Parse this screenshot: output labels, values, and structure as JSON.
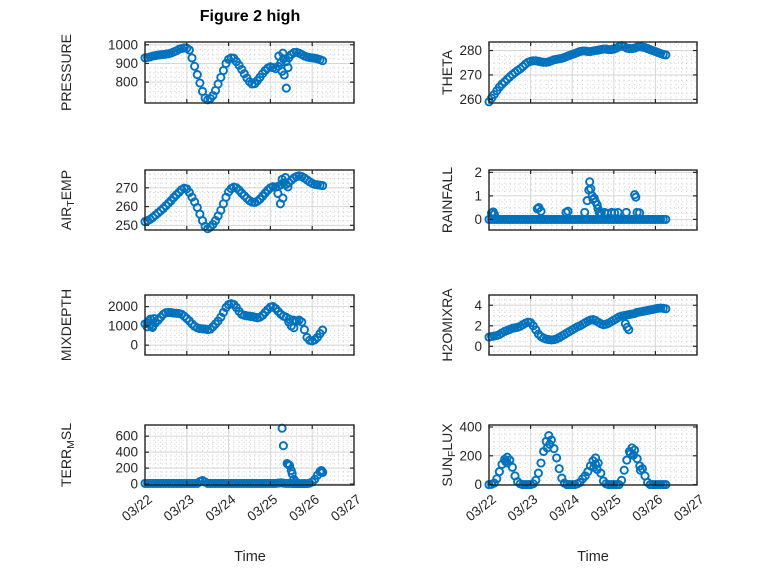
{
  "figure": {
    "title": "Figure 2 high",
    "xlabel": "Time",
    "x_tick_labels": [
      "03/22",
      "03/23",
      "03/24",
      "03/25",
      "03/26",
      "03/27"
    ],
    "xlim": [
      0,
      5
    ],
    "xticks": [
      0,
      1,
      2,
      3,
      4,
      5
    ],
    "colors": {
      "marker": "#0072BD",
      "axis": "#262626",
      "major_grid": "#d6d6d6",
      "minor_grid": "#c9c9c9",
      "text": "#262626",
      "background": "#ffffff"
    }
  },
  "chart_data": [
    {
      "type": "scatter",
      "name": "PRESSURE",
      "ylabel_pre": "PRESSURE",
      "ylabel_sub": "",
      "ylabel_post": "",
      "yticks": [
        800,
        900,
        1000
      ],
      "ylim": [
        688,
        1015
      ],
      "x0": 0,
      "dx": 0.0625,
      "y": [
        930,
        932,
        935,
        940,
        942,
        945,
        947,
        948,
        950,
        952,
        956,
        962,
        968,
        976,
        980,
        984,
        982,
        972,
        930,
        885,
        840,
        795,
        750,
        715,
        705,
        712,
        728,
        755,
        790,
        825,
        862,
        900,
        922,
        930,
        928,
        910,
        890,
        868,
        845,
        822,
        802,
        790,
        792,
        808,
        825,
        845,
        862,
        875,
        882,
        878,
        872,
        885,
        905,
        925,
        910,
        930,
        948,
        958,
        960,
        955,
        948,
        940,
        935,
        932,
        930,
        928,
        925,
        920,
        915
      ],
      "extra": [
        [
          3.28,
          858
        ],
        [
          3.33,
          838
        ],
        [
          3.38,
          768
        ],
        [
          3.2,
          940
        ],
        [
          3.3,
          955
        ],
        [
          3.42,
          878
        ]
      ]
    },
    {
      "type": "scatter",
      "name": "THETA",
      "ylabel_pre": "THETA",
      "ylabel_sub": "",
      "ylabel_post": "",
      "yticks": [
        260,
        270,
        280
      ],
      "ylim": [
        258.5,
        283.5
      ],
      "x0": 0,
      "dx": 0.0625,
      "y": [
        259,
        260.5,
        262,
        263.5,
        265,
        266.2,
        267.2,
        268.2,
        269.2,
        270.2,
        271,
        271.8,
        272.5,
        273.4,
        274.4,
        275.2,
        275.6,
        275.8,
        275.8,
        275.6,
        275.4,
        275.2,
        275.2,
        275.4,
        275.8,
        276.2,
        276.4,
        276.6,
        276.8,
        277.2,
        277.6,
        278,
        278.4,
        278.8,
        279.2,
        279.6,
        279.8,
        279.8,
        279.6,
        279.6,
        279.8,
        280,
        280.2,
        280.4,
        280.6,
        280.6,
        280.4,
        280.4,
        280.6,
        281,
        281.6,
        282,
        281.6,
        281,
        280.8,
        280.8,
        281,
        281.4,
        281.6,
        281.4,
        281.2,
        280.8,
        280.4,
        280,
        279.6,
        279.2,
        278.8,
        278.4,
        278.2
      ],
      "extra": []
    },
    {
      "type": "scatter",
      "name": "AIR_TEMP",
      "ylabel_pre": "AIR",
      "ylabel_sub": "T",
      "ylabel_post": "EMP",
      "yticks": [
        250,
        260,
        270
      ],
      "ylim": [
        247.5,
        279.5
      ],
      "x0": 0,
      "dx": 0.0625,
      "y": [
        252,
        252.5,
        253.2,
        254.2,
        255.4,
        256.6,
        257.8,
        259,
        260.4,
        261.8,
        263.2,
        264.8,
        266.2,
        267.6,
        269,
        269.8,
        269.4,
        267.5,
        265,
        262.5,
        259.5,
        256,
        252.5,
        249.5,
        248.2,
        249,
        250.5,
        252.5,
        255,
        258,
        261.5,
        265,
        267.8,
        269.6,
        270.4,
        270,
        268.8,
        267.2,
        265.8,
        264.4,
        263.2,
        262.4,
        262.2,
        262.8,
        264,
        265.6,
        267.2,
        268.8,
        270,
        270.6,
        270.4,
        270.8,
        271.6,
        272.6,
        271.8,
        272.8,
        274,
        275.2,
        276,
        276.4,
        276,
        275.2,
        274.2,
        273.2,
        272.4,
        271.8,
        271.6,
        271.4,
        271.2
      ],
      "extra": [
        [
          3.18,
          267
        ],
        [
          3.24,
          261.5
        ],
        [
          3.3,
          264.5
        ],
        [
          3.28,
          274.5
        ],
        [
          3.36,
          275.5
        ],
        [
          3.42,
          270.5
        ]
      ]
    },
    {
      "type": "scatter",
      "name": "RAINFALL",
      "ylabel_pre": "RAINFALL",
      "ylabel_sub": "",
      "ylabel_post": "",
      "yticks": [
        0,
        1,
        2
      ],
      "ylim": [
        -0.45,
        2.1
      ],
      "x0": 0,
      "dx": 0.0625,
      "y": [
        0,
        0,
        0,
        0,
        0,
        0,
        0,
        0,
        0,
        0,
        0,
        0,
        0,
        0,
        0,
        0,
        0,
        0,
        0,
        0,
        0,
        0,
        0,
        0,
        0,
        0,
        0,
        0,
        0,
        0,
        0,
        0,
        0,
        0,
        0,
        0,
        0,
        0,
        0,
        0,
        0,
        0,
        0,
        0,
        0,
        0,
        0,
        0,
        0,
        0,
        0,
        0,
        0,
        0,
        0,
        0,
        0,
        0,
        0,
        0,
        0,
        0,
        0,
        0,
        0,
        0,
        0,
        0,
        0
      ],
      "extra": [
        [
          0.06,
          0.27
        ],
        [
          0.1,
          0.32
        ],
        [
          0.13,
          0.22
        ],
        [
          1.16,
          0.45
        ],
        [
          1.2,
          0.5
        ],
        [
          1.25,
          0.35
        ],
        [
          1.85,
          0.3
        ],
        [
          1.9,
          0.35
        ],
        [
          2.3,
          0.3
        ],
        [
          2.36,
          0.8
        ],
        [
          2.4,
          1.25
        ],
        [
          2.42,
          1.6
        ],
        [
          2.45,
          1.3
        ],
        [
          2.48,
          1.0
        ],
        [
          2.5,
          0.85
        ],
        [
          2.53,
          0.9
        ],
        [
          2.56,
          0.75
        ],
        [
          2.6,
          0.62
        ],
        [
          2.62,
          0.45
        ],
        [
          2.65,
          0.3
        ],
        [
          2.7,
          0.28
        ],
        [
          2.78,
          0.3
        ],
        [
          2.85,
          0.25
        ],
        [
          2.95,
          0.3
        ],
        [
          3.02,
          0.28
        ],
        [
          3.1,
          0.3
        ],
        [
          3.3,
          0.3
        ],
        [
          3.5,
          1.05
        ],
        [
          3.53,
          0.95
        ],
        [
          3.56,
          0.3
        ],
        [
          3.62,
          0.28
        ]
      ]
    },
    {
      "type": "scatter",
      "name": "MIXDEPTH",
      "ylabel_pre": "MIXDEPTH",
      "ylabel_sub": "",
      "ylabel_post": "",
      "yticks": [
        0,
        1000,
        2000
      ],
      "ylim": [
        -510,
        2600
      ],
      "x0": 0,
      "dx": 0.0625,
      "y": [
        1100,
        1150,
        1050,
        1000,
        1150,
        1300,
        1450,
        1600,
        1680,
        1700,
        1690,
        1660,
        1650,
        1640,
        1600,
        1500,
        1380,
        1250,
        1100,
        980,
        900,
        860,
        850,
        830,
        800,
        830,
        950,
        1100,
        1250,
        1450,
        1700,
        1950,
        2100,
        2150,
        2100,
        1950,
        1750,
        1600,
        1550,
        1520,
        1500,
        1480,
        1450,
        1420,
        1450,
        1550,
        1700,
        1850,
        1980,
        2000,
        1900,
        1750,
        1600,
        1500,
        1450,
        1200,
        1000,
        900,
        1250,
        1300,
        1200,
        800,
        400,
        250,
        220,
        280,
        400,
        600,
        780
      ],
      "extra": [
        [
          0.05,
          950
        ],
        [
          0.09,
          1250
        ],
        [
          0.13,
          1350
        ],
        [
          0.18,
          920
        ],
        [
          0.22,
          1380
        ],
        [
          3.45,
          1350
        ],
        [
          3.55,
          1300
        ]
      ]
    },
    {
      "type": "scatter",
      "name": "H2OMIXRA",
      "ylabel_pre": "H2OMIXRA",
      "ylabel_sub": "",
      "ylabel_post": "",
      "yticks": [
        0,
        2,
        4
      ],
      "ylim": [
        -0.85,
        5.0
      ],
      "x0": 0,
      "dx": 0.0625,
      "y": [
        0.9,
        0.95,
        1.0,
        1.05,
        1.15,
        1.3,
        1.45,
        1.55,
        1.65,
        1.75,
        1.8,
        1.85,
        1.95,
        2.1,
        2.25,
        2.35,
        2.3,
        2.0,
        1.6,
        1.2,
        0.95,
        0.8,
        0.7,
        0.65,
        0.62,
        0.65,
        0.72,
        0.85,
        1.0,
        1.15,
        1.3,
        1.45,
        1.6,
        1.75,
        1.9,
        2.0,
        2.15,
        2.3,
        2.45,
        2.55,
        2.6,
        2.5,
        2.35,
        2.2,
        2.1,
        2.15,
        2.25,
        2.4,
        2.55,
        2.7,
        2.85,
        2.95,
        3.0,
        3.05,
        3.1,
        3.15,
        3.2,
        3.3,
        3.35,
        3.4,
        3.45,
        3.5,
        3.55,
        3.6,
        3.65,
        3.7,
        3.72,
        3.7,
        3.65
      ],
      "extra": [
        [
          3.28,
          2.2
        ],
        [
          3.32,
          1.85
        ],
        [
          3.36,
          1.62
        ]
      ]
    },
    {
      "type": "scatter",
      "name": "TERR_MSL",
      "ylabel_pre": "TERR",
      "ylabel_sub": "M",
      "ylabel_post": "SL",
      "yticks": [
        0,
        200,
        400,
        600
      ],
      "ylim": [
        -12,
        740
      ],
      "x0": 0,
      "dx": 0.0625,
      "y": [
        8,
        8,
        8,
        8,
        8,
        8,
        8,
        8,
        8,
        8,
        8,
        8,
        8,
        8,
        8,
        8,
        8,
        8,
        8,
        8,
        8,
        30,
        45,
        25,
        8,
        8,
        8,
        8,
        8,
        8,
        8,
        8,
        8,
        8,
        8,
        8,
        8,
        8,
        8,
        8,
        8,
        8,
        8,
        8,
        8,
        8,
        8,
        8,
        8,
        8,
        8,
        12,
        15,
        10,
        8,
        8,
        8,
        5,
        5,
        5,
        5,
        5,
        5,
        10,
        25,
        60,
        110,
        155,
        145
      ],
      "extra": [
        [
          3.28,
          700
        ],
        [
          3.31,
          480
        ],
        [
          3.4,
          258
        ],
        [
          3.43,
          245
        ],
        [
          3.46,
          232
        ],
        [
          3.5,
          170
        ],
        [
          3.52,
          130
        ],
        [
          3.56,
          60
        ],
        [
          3.6,
          30
        ],
        [
          4.22,
          170
        ],
        [
          4.25,
          150
        ]
      ]
    },
    {
      "type": "scatter",
      "name": "SUN_FLUX",
      "ylabel_pre": "SUN",
      "ylabel_sub": "F",
      "ylabel_post": "LUX",
      "yticks": [
        0,
        200,
        400
      ],
      "ylim": [
        -3,
        414
      ],
      "x0": 0,
      "dx": 0.0625,
      "y": [
        0,
        2,
        10,
        40,
        90,
        140,
        175,
        190,
        170,
        120,
        60,
        20,
        5,
        0,
        0,
        0,
        0,
        5,
        30,
        80,
        150,
        230,
        300,
        340,
        310,
        250,
        185,
        110,
        45,
        10,
        0,
        0,
        0,
        0,
        5,
        15,
        40,
        60,
        90,
        130,
        165,
        185,
        150,
        80,
        25,
        5,
        0,
        0,
        0,
        0,
        0,
        30,
        100,
        170,
        230,
        255,
        240,
        180,
        130,
        110,
        60,
        15,
        0,
        0,
        0,
        0,
        0,
        0,
        0
      ],
      "extra": [
        [
          1.4,
          255
        ],
        [
          1.46,
          280
        ],
        [
          2.52,
          120
        ],
        [
          2.56,
          140
        ],
        [
          2.6,
          105
        ],
        [
          3.4,
          215
        ],
        [
          3.47,
          205
        ],
        [
          3.64,
          100
        ],
        [
          0.4,
          160
        ],
        [
          0.44,
          150
        ]
      ]
    }
  ]
}
